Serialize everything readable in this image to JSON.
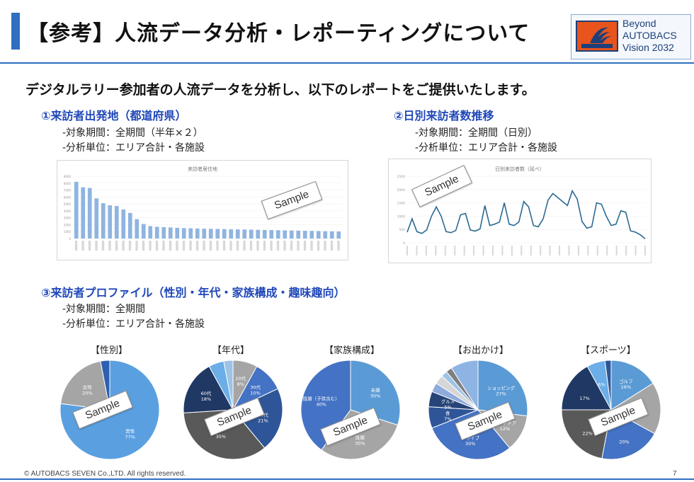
{
  "title": "【参考】人流データ分析・レポーティングについて",
  "logo": {
    "line1": "Beyond",
    "line2": "AUTOBACS",
    "line3": "Vision 2032",
    "mark_text": "AUTOBACS SEVEN"
  },
  "intro": "デジタルラリー参加者の人流データを分析し、以下のレポートをご提供いたします。",
  "sections": [
    {
      "heading": "①来訪者出発地（都道府県）",
      "line1": "-対象期間：全期間（半年×２）",
      "line2": "-分析単位：エリア合計・各施設"
    },
    {
      "heading": "②日別来訪者数推移",
      "line1": "-対象期間：全期間（日別）",
      "line2": "-分析単位：エリア合計・各施設"
    },
    {
      "heading": "③来訪者プロファイル（性別・年代・家族構成・趣味趣向）",
      "line1": "-対象期間：全期間",
      "line2": "-分析単位：エリア合計・各施設"
    }
  ],
  "sample_label": "Sample",
  "colors": {
    "accent": "#2e6fc0",
    "heading_blue": "#1f47b8",
    "bar": "#8fb4e0",
    "line": "#2a6a93"
  },
  "chart_data": [
    {
      "type": "bar",
      "title": "来訪者居住地",
      "values": [
        8200,
        7400,
        7300,
        5800,
        5100,
        4800,
        4700,
        4200,
        3700,
        2800,
        2100,
        1800,
        1700,
        1650,
        1600,
        1550,
        1500,
        1480,
        1450,
        1420,
        1400,
        1380,
        1360,
        1340,
        1320,
        1300,
        1280,
        1260,
        1240,
        1220,
        1200,
        1180,
        1160,
        1140,
        1120,
        1100,
        1080,
        1060,
        1040,
        1020
      ],
      "ylim": [
        0,
        9000
      ],
      "yticks": [
        "0",
        "1000",
        "2000",
        "3000",
        "4000",
        "5000",
        "6000",
        "7000",
        "8000",
        "9000"
      ]
    },
    {
      "type": "line",
      "title": "日別来訪者数（延べ）",
      "values": [
        400,
        900,
        420,
        350,
        480,
        1000,
        1350,
        1000,
        420,
        380,
        460,
        1050,
        1100,
        480,
        440,
        520,
        1400,
        650,
        700,
        780,
        1500,
        700,
        650,
        780,
        1550,
        1350,
        650,
        600,
        900,
        1600,
        1850,
        1700,
        1550,
        1400,
        1950,
        1650,
        800,
        550,
        600,
        1500,
        1450,
        1000,
        650,
        700,
        1200,
        1150,
        450,
        400,
        300,
        150
      ],
      "ylim": [
        0,
        2500
      ],
      "yticks": [
        "0",
        "500",
        "1000",
        "1500",
        "2000",
        "2500"
      ]
    },
    {
      "type": "pie",
      "title": "【性別】",
      "slices": [
        {
          "label": "男性",
          "value": 77,
          "text": "男性\n77%",
          "color": "#5aa0e0"
        },
        {
          "label": "女性",
          "value": 20,
          "text": "女性\n20%",
          "color": "#a5a5a5"
        },
        {
          "label": "",
          "value": 3,
          "text": "",
          "color": "#2f5fb0"
        }
      ]
    },
    {
      "type": "pie",
      "title": "【年代】",
      "slices": [
        {
          "label": "20代",
          "value": 8,
          "text": "20代\n8%",
          "color": "#a5a5a5"
        },
        {
          "label": "30代",
          "value": 10,
          "text": "30代\n10%",
          "color": "#4472c4"
        },
        {
          "label": "40代",
          "value": 21,
          "text": "40代\n21%",
          "color": "#2e5597"
        },
        {
          "label": "50代",
          "value": 35,
          "text": "35%",
          "color": "#595959"
        },
        {
          "label": "60代",
          "value": 18,
          "text": "60代\n18%",
          "color": "#203864"
        },
        {
          "label": "",
          "value": 5,
          "text": "",
          "color": "#6baee8"
        },
        {
          "label": "",
          "value": 3,
          "text": "",
          "color": "#9dc3e6"
        }
      ]
    },
    {
      "type": "pie",
      "title": "【家族構成】",
      "slices": [
        {
          "label": "未婚",
          "value": 30,
          "text": "未婚\n30%",
          "color": "#5b9bd5"
        },
        {
          "label": "既婚",
          "value": 30,
          "text": "既婚\n30%",
          "color": "#a5a5a5"
        },
        {
          "label": "既婚（子供含む）",
          "value": 40,
          "text": "既婚（子供含む）\n40%",
          "color": "#4472c4"
        }
      ]
    },
    {
      "type": "pie",
      "title": "【お出かけ】",
      "slices": [
        {
          "label": "ショッピング",
          "value": 27,
          "text": "ショッピング\n27%",
          "color": "#5b9bd5"
        },
        {
          "label": "アウトドア",
          "value": 12,
          "text": "アウトドア\n12%",
          "color": "#a5a5a5"
        },
        {
          "label": "ドライブ",
          "value": 30,
          "text": "ドライブ\n30%",
          "color": "#4472c4"
        },
        {
          "label": "食",
          "value": 7,
          "text": "食\n7%",
          "color": "#2e5597"
        },
        {
          "label": "グルメ",
          "value": 5,
          "text": "グルメ\n5%",
          "color": "#264478"
        },
        {
          "label": "",
          "value": 3,
          "text": "",
          "color": "#8faadc"
        },
        {
          "label": "",
          "value": 3,
          "text": "",
          "color": "#d6d6d6"
        },
        {
          "label": "",
          "value": 2,
          "text": "",
          "color": "#9dc3e6"
        },
        {
          "label": "",
          "value": 2,
          "text": "",
          "color": "#7f7f7f"
        },
        {
          "label": "",
          "value": 9,
          "text": "",
          "color": "#8eb4e3"
        }
      ]
    },
    {
      "type": "pie",
      "title": "【スポーツ】",
      "slices": [
        {
          "label": "ゴルフ",
          "value": 16,
          "text": "ゴルフ\n16%",
          "color": "#5b9bd5"
        },
        {
          "label": "",
          "value": 17,
          "text": "\n17%",
          "color": "#a5a5a5"
        },
        {
          "label": "",
          "value": 20,
          "text": "\n20%",
          "color": "#4472c4"
        },
        {
          "label": "",
          "value": 22,
          "text": "\n22%",
          "color": "#595959"
        },
        {
          "label": "",
          "value": 17,
          "text": "\n17%",
          "color": "#203864"
        },
        {
          "label": "",
          "value": 6,
          "text": "\n6%",
          "color": "#6baee8"
        },
        {
          "label": "",
          "value": 2,
          "text": "",
          "color": "#2e5597"
        }
      ]
    }
  ],
  "footer": {
    "copyright": "© AUTOBACS SEVEN Co.,LTD. All rights reserved.",
    "page": "7"
  }
}
